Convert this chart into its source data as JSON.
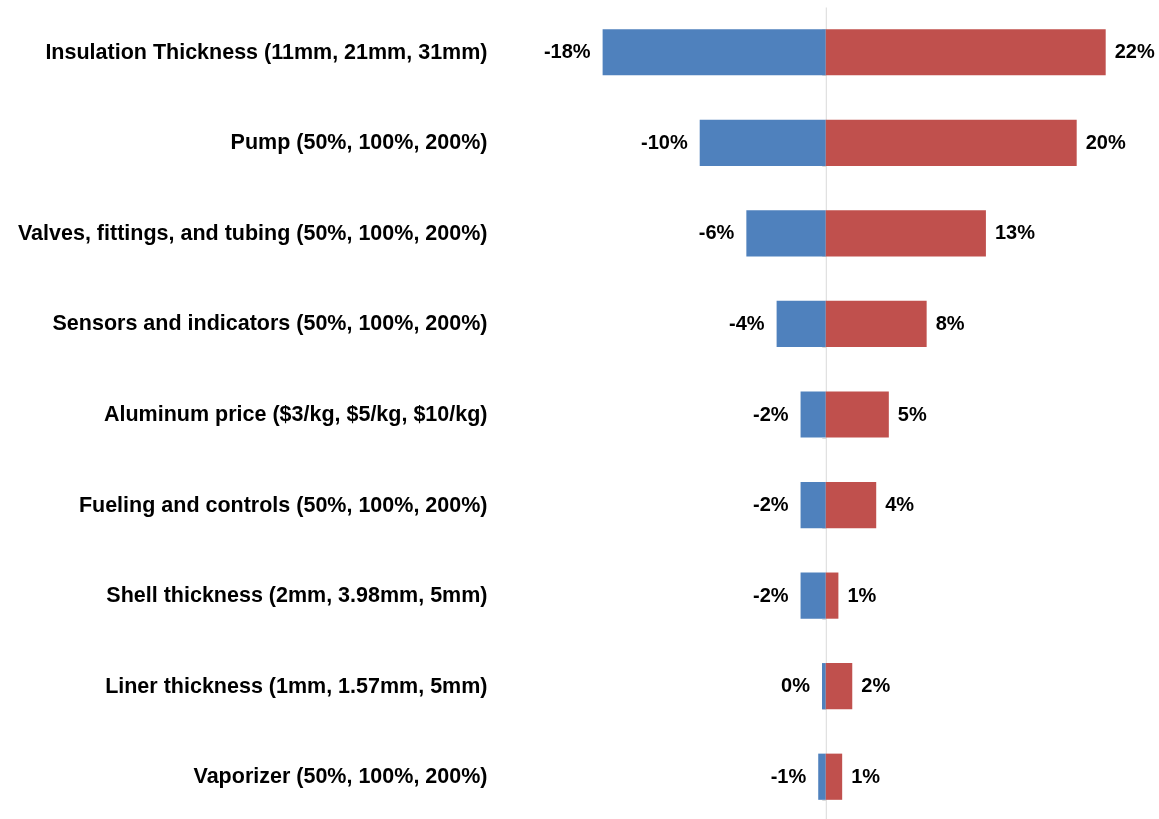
{
  "chart_data": {
    "type": "bar",
    "orientation": "horizontal",
    "stacked": true,
    "categories": [
      "Insulation Thickness (11mm, 21mm, 31mm)",
      "Pump (50%, 100%, 200%)",
      "Valves, fittings, and tubing (50%, 100%, 200%)",
      "Sensors and indicators (50%, 100%, 200%)",
      "Aluminum price ($3/kg, $5/kg, $10/kg)",
      "Fueling and controls (50%, 100%, 200%)",
      "Shell thickness (2mm, 3.98mm, 5mm)",
      "Liner thickness (1mm, 1.57mm, 5mm)",
      "Vaporizer (50%, 100%, 200%)"
    ],
    "series": [
      {
        "color": "#4f81bd",
        "values": [
          -17.7,
          -10,
          -6.3,
          -3.9,
          -2,
          -2,
          -2,
          -0.3,
          -0.6
        ],
        "value_labels": [
          "-18%",
          "-10%",
          "-6%",
          "-4%",
          "-2%",
          "-2%",
          "-2%",
          "0%",
          "-1%"
        ]
      },
      {
        "color": "#c0504d",
        "values": [
          22.2,
          19.9,
          12.7,
          8,
          5,
          4,
          1,
          2.1,
          1.3
        ],
        "value_labels": [
          "22%",
          "20%",
          "13%",
          "8%",
          "5%",
          "4%",
          "1%",
          "2%",
          "1%"
        ]
      }
    ]
  }
}
